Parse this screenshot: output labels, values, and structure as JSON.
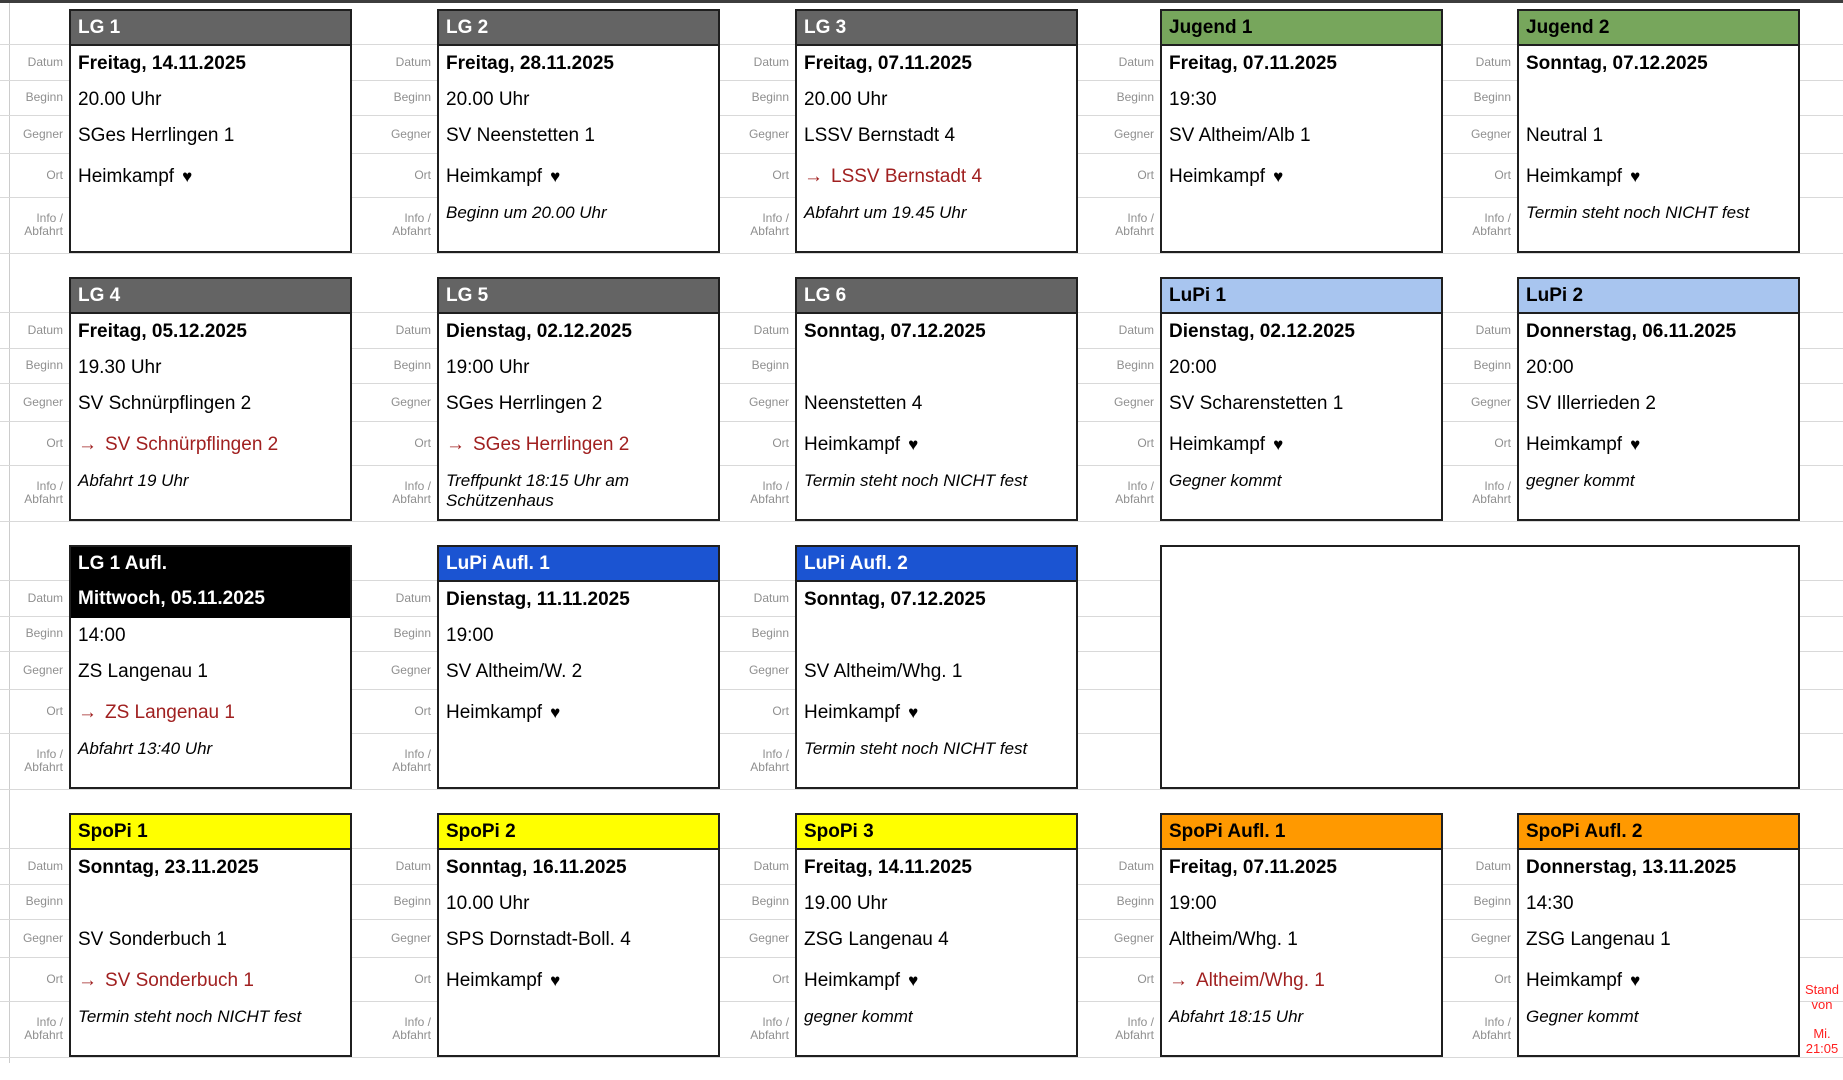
{
  "frame": {
    "stand_note": {
      "line1": "Stand von",
      "line2": "Mi. 21:05"
    }
  },
  "field_labels": {
    "datum": "Datum",
    "beginn": "Beginn",
    "gegner": "Gegner",
    "ort": "Ort",
    "info_line1": "Info /",
    "info_line2": "Abfahrt"
  },
  "icons": {
    "away_arrow": "→",
    "home_heart": "♥"
  },
  "colors": {
    "gray": {
      "bg": "#646464",
      "fg": "#ffffff"
    },
    "green": {
      "bg": "#77a65c",
      "fg": "#000000"
    },
    "light_blue": {
      "bg": "#a8c5ef",
      "fg": "#000000"
    },
    "blue": {
      "bg": "#1b54d2",
      "fg": "#ffffff"
    },
    "black": {
      "bg": "#000000",
      "fg": "#ffffff"
    },
    "yellow": {
      "bg": "#ffff00",
      "fg": "#000000"
    },
    "orange": {
      "bg": "#ff9900",
      "fg": "#000000"
    },
    "away_red": "#a02020",
    "note_red": "#ff2020"
  },
  "cards": [
    {
      "title": "LG 1",
      "color": "gray",
      "row": 1,
      "col": 1,
      "datum": "Freitag, 14.11.2025",
      "beginn": "20.00 Uhr",
      "gegner": "SGes Herrlingen 1",
      "ort": {
        "type": "home",
        "text": "Heimkampf"
      },
      "info": ""
    },
    {
      "title": "LG 2",
      "color": "gray",
      "row": 1,
      "col": 2,
      "datum": "Freitag, 28.11.2025",
      "beginn": "20.00 Uhr",
      "gegner": "SV Neenstetten 1",
      "ort": {
        "type": "home",
        "text": "Heimkampf"
      },
      "info": "Beginn um 20.00 Uhr"
    },
    {
      "title": "LG 3",
      "color": "gray",
      "row": 1,
      "col": 3,
      "datum": "Freitag, 07.11.2025",
      "beginn": "20.00 Uhr",
      "gegner": "LSSV Bernstadt 4",
      "ort": {
        "type": "away",
        "text": "LSSV Bernstadt 4"
      },
      "info": "Abfahrt um 19.45 Uhr"
    },
    {
      "title": "Jugend 1",
      "color": "green",
      "row": 1,
      "col": 4,
      "datum": "Freitag, 07.11.2025",
      "beginn": "19:30",
      "gegner": "SV Altheim/Alb 1",
      "ort": {
        "type": "home",
        "text": "Heimkampf"
      },
      "info": ""
    },
    {
      "title": "Jugend 2",
      "color": "green",
      "row": 1,
      "col": 5,
      "datum": "Sonntag, 07.12.2025",
      "beginn": "",
      "gegner": "Neutral 1",
      "ort": {
        "type": "home",
        "text": "Heimkampf"
      },
      "info": "Termin steht noch NICHT fest"
    },
    {
      "title": "LG 4",
      "color": "gray",
      "row": 2,
      "col": 1,
      "datum": "Freitag, 05.12.2025",
      "beginn": "19.30 Uhr",
      "gegner": "SV Schnürpflingen 2",
      "ort": {
        "type": "away",
        "text": "SV Schnürpflingen 2"
      },
      "info": "Abfahrt 19 Uhr"
    },
    {
      "title": "LG 5",
      "color": "gray",
      "row": 2,
      "col": 2,
      "datum": "Dienstag, 02.12.2025",
      "beginn": "19:00 Uhr",
      "gegner": "SGes Herrlingen 2",
      "ort": {
        "type": "away",
        "text": "SGes Herrlingen 2"
      },
      "info": "Treffpunkt 18:15 Uhr am Schützenhaus"
    },
    {
      "title": "LG 6",
      "color": "gray",
      "row": 2,
      "col": 3,
      "datum": "Sonntag, 07.12.2025",
      "beginn": "",
      "gegner": "Neenstetten 4",
      "ort": {
        "type": "home",
        "text": "Heimkampf"
      },
      "info": "Termin steht noch NICHT fest"
    },
    {
      "title": "LuPi 1",
      "color": "light_blue",
      "row": 2,
      "col": 4,
      "datum": "Dienstag, 02.12.2025",
      "beginn": "20:00",
      "gegner": "SV Scharenstetten 1",
      "ort": {
        "type": "home",
        "text": "Heimkampf"
      },
      "info": "Gegner kommt"
    },
    {
      "title": "LuPi 2",
      "color": "light_blue",
      "row": 2,
      "col": 5,
      "datum": "Donnerstag, 06.11.2025",
      "beginn": "20:00",
      "gegner": "SV Illerrieden 2",
      "ort": {
        "type": "home",
        "text": "Heimkampf"
      },
      "info": "gegner kommt"
    },
    {
      "title": "LG 1 Aufl.",
      "color": "black",
      "row": 3,
      "col": 1,
      "datum": "Mittwoch, 05.11.2025",
      "beginn": "14:00",
      "gegner": "ZS Langenau 1",
      "ort": {
        "type": "away",
        "text": "ZS Langenau 1"
      },
      "info": "Abfahrt 13:40 Uhr",
      "merged_header": true
    },
    {
      "title": "LuPi Aufl. 1",
      "color": "blue",
      "row": 3,
      "col": 2,
      "datum": "Dienstag, 11.11.2025",
      "beginn": "19:00",
      "gegner": "SV Altheim/W. 2",
      "ort": {
        "type": "home",
        "text": "Heimkampf"
      },
      "info": ""
    },
    {
      "title": "LuPi Aufl. 2",
      "color": "blue",
      "row": 3,
      "col": 3,
      "datum": "Sonntag, 07.12.2025",
      "beginn": "",
      "gegner": "SV Altheim/Whg. 1",
      "ort": {
        "type": "home",
        "text": "Heimkampf"
      },
      "info": "Termin steht noch NICHT fest"
    },
    {
      "title": "SpoPi 1",
      "color": "yellow",
      "row": 4,
      "col": 1,
      "datum": "Sonntag, 23.11.2025",
      "beginn": "",
      "gegner": "SV Sonderbuch 1",
      "ort": {
        "type": "away",
        "text": "SV Sonderbuch 1"
      },
      "info": "Termin steht noch NICHT fest"
    },
    {
      "title": "SpoPi 2",
      "color": "yellow",
      "row": 4,
      "col": 2,
      "datum": "Sonntag, 16.11.2025",
      "beginn": "10.00 Uhr",
      "gegner": "SPS Dornstadt-Boll. 4",
      "ort": {
        "type": "home",
        "text": "Heimkampf"
      },
      "info": ""
    },
    {
      "title": "SpoPi 3",
      "color": "yellow",
      "row": 4,
      "col": 3,
      "datum": "Freitag, 14.11.2025",
      "beginn": "19.00 Uhr",
      "gegner": "ZSG Langenau 4",
      "ort": {
        "type": "home",
        "text": "Heimkampf"
      },
      "info": "gegner kommt"
    },
    {
      "title": "SpoPi Aufl. 1",
      "color": "orange",
      "row": 4,
      "col": 4,
      "datum": "Freitag, 07.11.2025",
      "beginn": "19:00",
      "gegner": "Altheim/Whg. 1",
      "ort": {
        "type": "away",
        "text": "Altheim/Whg. 1"
      },
      "info": "Abfahrt 18:15 Uhr"
    },
    {
      "title": "SpoPi Aufl. 2",
      "color": "orange",
      "row": 4,
      "col": 5,
      "datum": "Donnerstag, 13.11.2025",
      "beginn": "14:30",
      "gegner": "ZSG Langenau 1",
      "ort": {
        "type": "home",
        "text": "Heimkampf"
      },
      "info": "Gegner kommt"
    }
  ],
  "empty_panel": {
    "row": 3,
    "col_start": 4,
    "col_end": 5
  }
}
